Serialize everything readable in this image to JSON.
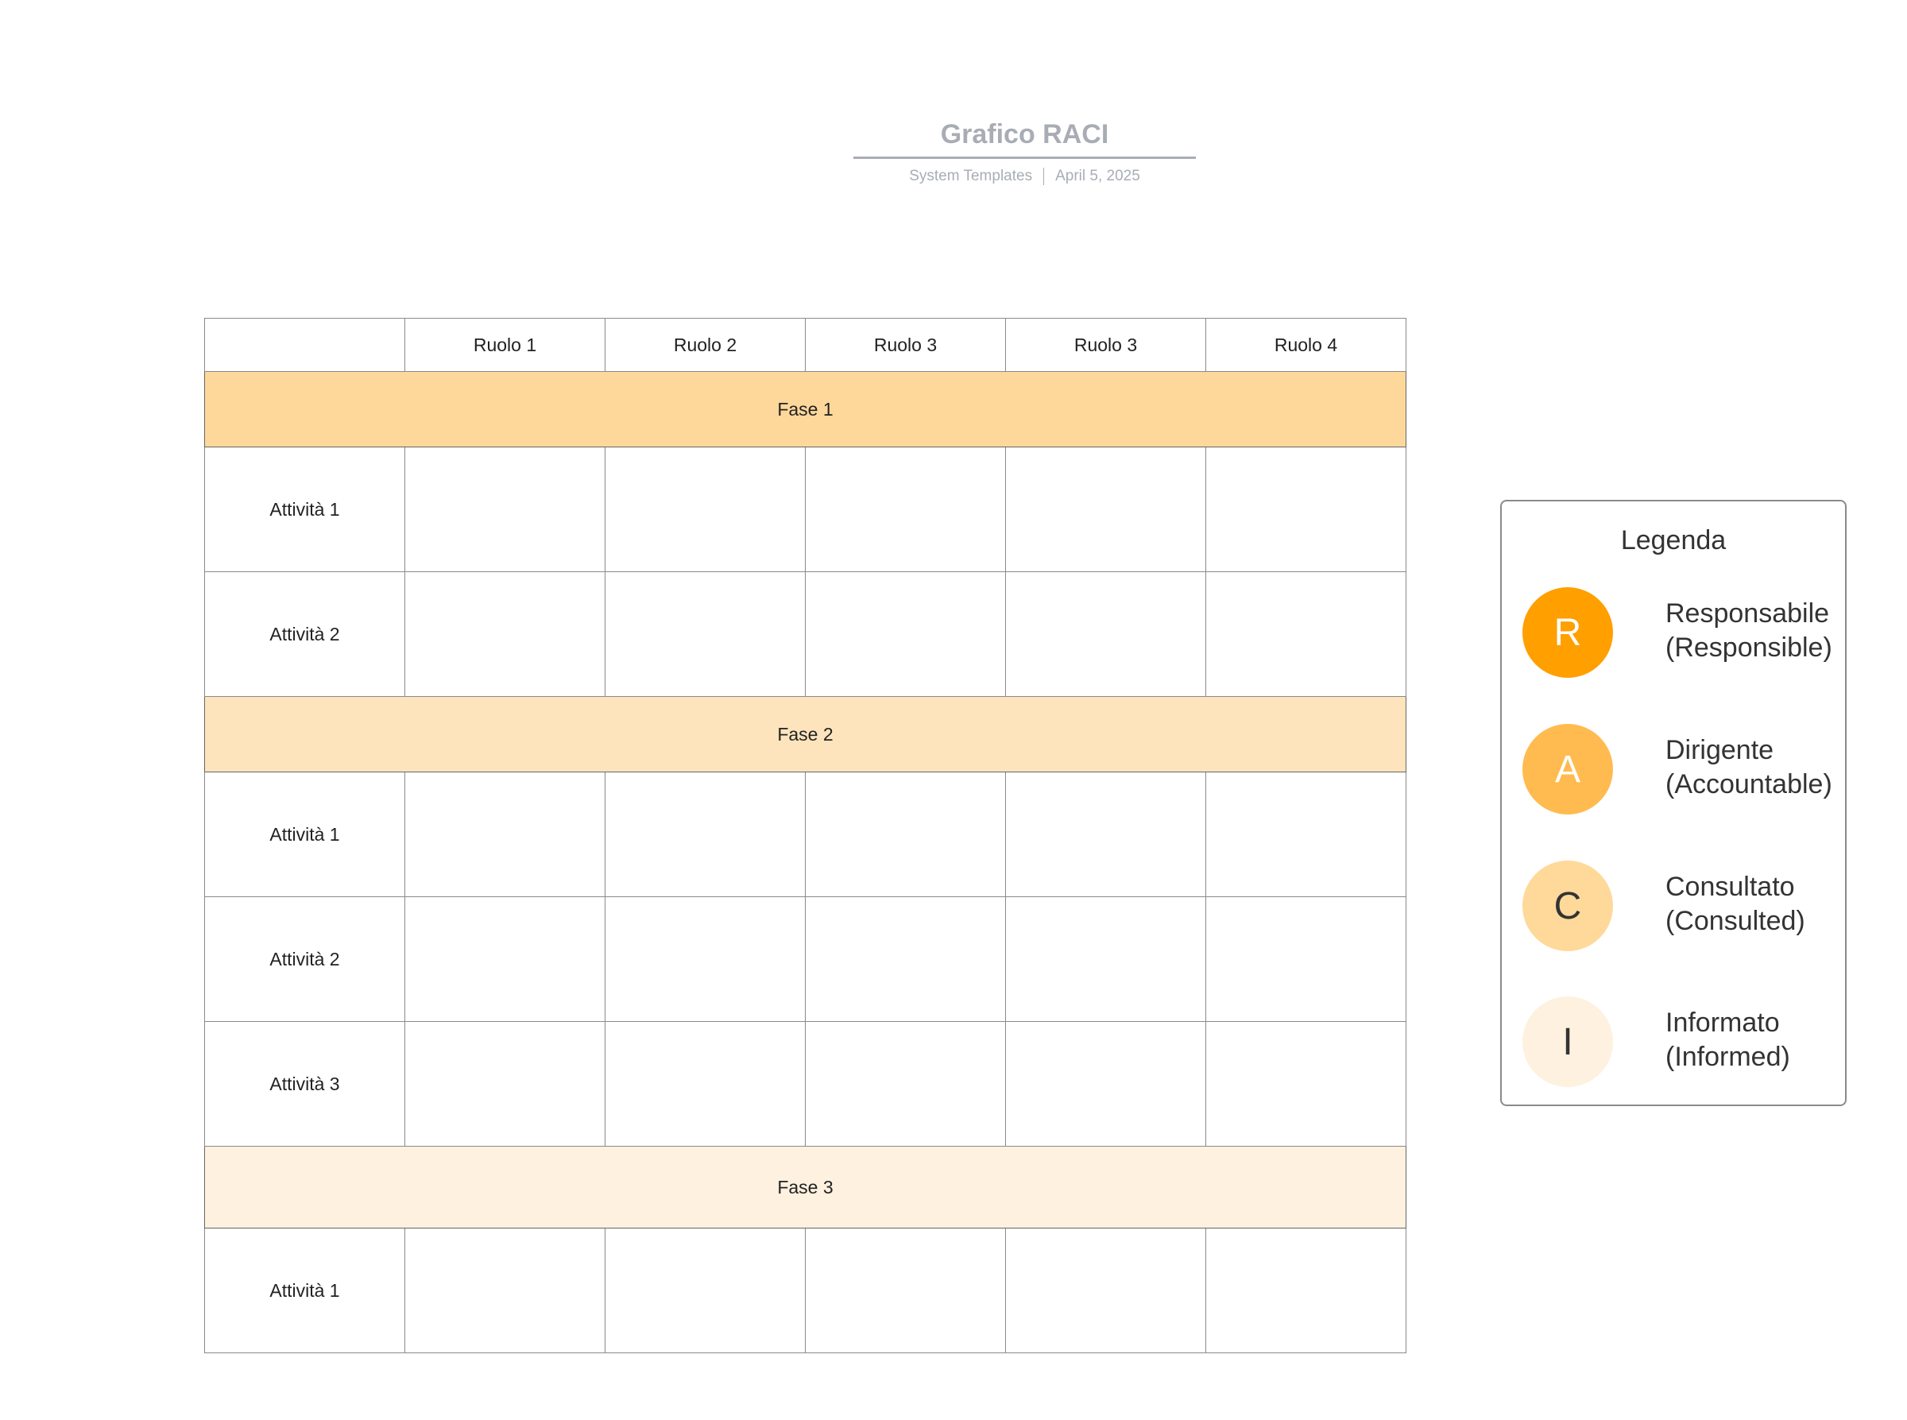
{
  "header": {
    "title": "Grafico RACI",
    "source": "System Templates",
    "date": "April 5, 2025"
  },
  "table": {
    "columns": [
      "Ruolo 1",
      "Ruolo 2",
      "Ruolo 3",
      "Ruolo 3",
      "Ruolo 4"
    ],
    "phases": [
      {
        "label": "Fase 1",
        "color": "#fed89b",
        "activities": [
          "Attività 1",
          "Attività 2"
        ]
      },
      {
        "label": "Fase 2",
        "color": "#fee4bc",
        "activities": [
          "Attività 1",
          "Attività 2",
          "Attività 3"
        ]
      },
      {
        "label": "Fase 3",
        "color": "#fef1df",
        "activities": [
          "Attività 1"
        ]
      }
    ]
  },
  "legend": {
    "title": "Legenda",
    "items": [
      {
        "letter": "R",
        "label": "Responsabile",
        "sub": "(Responsible)",
        "color": "#ff9f00",
        "text_color": "#ffffff"
      },
      {
        "letter": "A",
        "label": "Dirigente",
        "sub": "(Accountable)",
        "color": "#ffbb4f",
        "text_color": "#ffffff"
      },
      {
        "letter": "C",
        "label": "Consultato",
        "sub": "(Consulted)",
        "color": "#ffd99a",
        "text_color": "#333333"
      },
      {
        "letter": "I",
        "label": "Informato",
        "sub": "(Informed)",
        "color": "#fef1df",
        "text_color": "#333333"
      }
    ]
  }
}
